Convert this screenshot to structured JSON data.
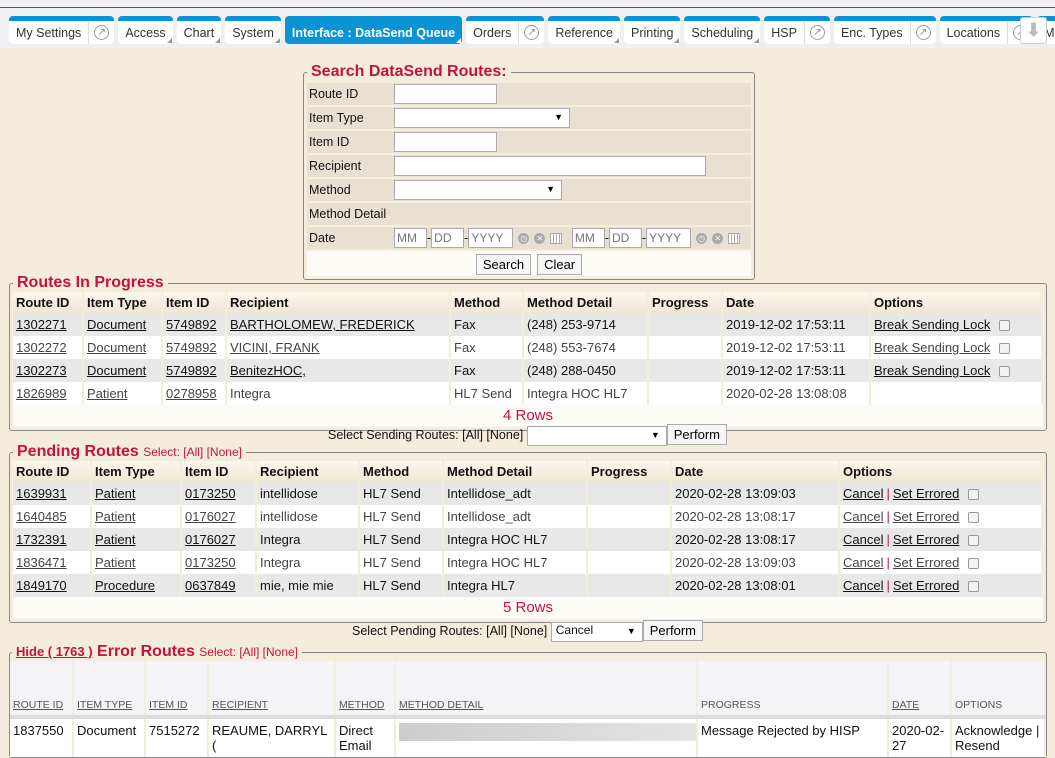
{
  "tabs": [
    {
      "label": "My Settings",
      "ext": true
    },
    {
      "label": "Access",
      "corner": true
    },
    {
      "label": "Chart",
      "corner": true
    },
    {
      "label": "System",
      "corner": true
    },
    {
      "label": "Interface : DataSend Queue",
      "active": true,
      "corner": true
    },
    {
      "label": "Orders",
      "ext": true
    },
    {
      "label": "Reference",
      "corner": true
    },
    {
      "label": "Printing",
      "corner": true
    },
    {
      "label": "Scheduling",
      "corner": true
    },
    {
      "label": "HSP",
      "ext": true
    },
    {
      "label": "Enc. Types",
      "ext": true
    },
    {
      "label": "Locations",
      "ext": true
    },
    {
      "label": "Me"
    }
  ],
  "search": {
    "title": "Search DataSend Routes:",
    "route_id": "Route ID",
    "item_type": "Item Type",
    "item_id": "Item ID",
    "recipient": "Recipient",
    "method": "Method",
    "method_detail": "Method Detail",
    "date": "Date",
    "mm": "MM",
    "dd": "DD",
    "yyyy": "YYYY",
    "search_btn": "Search",
    "clear_btn": "Clear"
  },
  "in_progress": {
    "title": "Routes In Progress",
    "headers": [
      "Route ID",
      "Item Type",
      "Item ID",
      "Recipient",
      "Method",
      "Method Detail",
      "Progress",
      "Date",
      "Options"
    ],
    "rows": [
      [
        "1302271",
        "Document",
        "5749892",
        "BARTHOLOMEW, FREDERICK",
        "Fax",
        "(248) 253-9714",
        "",
        "2019-12-02 17:53:11",
        "Break Sending Lock"
      ],
      [
        "1302272",
        "Document",
        "5749892",
        "VICINI, FRANK",
        "Fax",
        "(248) 553-7674",
        "",
        "2019-12-02 17:53:11",
        "Break Sending Lock"
      ],
      [
        "1302273",
        "Document",
        "5749892",
        "BenitezHOC,",
        "Fax",
        "(248) 288-0450",
        "",
        "2019-12-02 17:53:11",
        "Break Sending Lock"
      ],
      [
        "1826989",
        "Patient",
        "0278958",
        "Integra",
        "HL7 Send",
        "Integra HOC HL7",
        "",
        "2020-02-28 13:08:08",
        ""
      ]
    ],
    "count": "4 Rows",
    "select_label": "Select Sending Routes: [All] [None]",
    "action": "",
    "perform": "Perform"
  },
  "pending": {
    "title": "Pending Routes",
    "select": "Select: [All] [None]",
    "headers": [
      "Route ID",
      "Item Type",
      "Item ID",
      "Recipient",
      "Method",
      "Method Detail",
      "Progress",
      "Date",
      "Options"
    ],
    "rows": [
      [
        "1639931",
        "Patient",
        "0173250",
        "intellidose",
        "HL7 Send",
        "Intellidose_adt",
        "",
        "2020-02-28 13:09:03"
      ],
      [
        "1640485",
        "Patient",
        "0176027",
        "intellidose",
        "HL7 Send",
        "Intellidose_adt",
        "",
        "2020-02-28 13:08:17"
      ],
      [
        "1732391",
        "Patient",
        "0176027",
        "Integra",
        "HL7 Send",
        "Integra HOC HL7",
        "",
        "2020-02-28 13:08:17"
      ],
      [
        "1836471",
        "Patient",
        "0173250",
        "Integra",
        "HL7 Send",
        "Integra HOC HL7",
        "",
        "2020-02-28 13:09:03"
      ],
      [
        "1849170",
        "Procedure",
        "0637849",
        "mie, mie mie",
        "HL7 Send",
        "Integra HL7",
        "",
        "2020-02-28 13:08:01"
      ]
    ],
    "cancel": "Cancel",
    "set_errored": "Set Errored",
    "sep": "|",
    "count": "5 Rows",
    "select_label": "Select Pending Routes: [All] [None]",
    "action": "Cancel",
    "perform": "Perform"
  },
  "errors": {
    "hide": "Hide ( 1763 )",
    "title": "Error Routes",
    "select": "Select: [All] [None]",
    "headers": [
      "ROUTE ID",
      "ITEM TYPE",
      "ITEM ID",
      "RECIPIENT",
      "METHOD",
      "METHOD DETAIL",
      "PROGRESS",
      "DATE",
      "OPTIONS"
    ],
    "row": [
      "1837550",
      "Document",
      "7515272",
      "REAUME, DARRYL (",
      "Direct Email",
      "",
      "Message Rejected by HISP",
      "2020-02-27",
      "Acknowledge | Resend"
    ]
  }
}
